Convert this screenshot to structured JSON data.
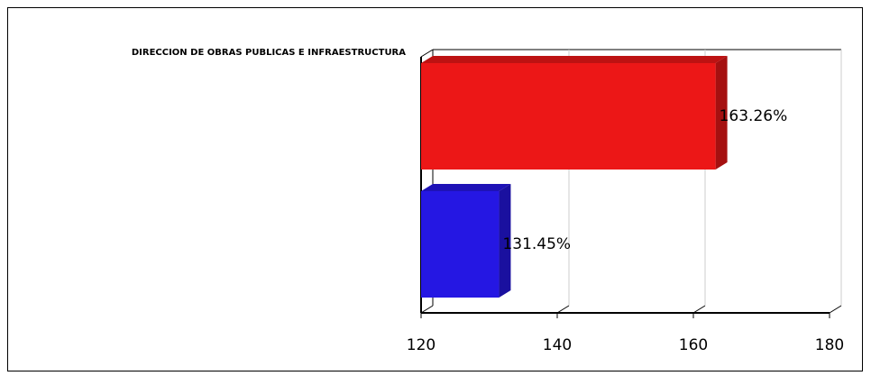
{
  "chart_data": {
    "type": "bar3d_horizontal",
    "categories": [
      "DIRECCION DE OBRAS PUBLICAS E INFRAESTRUCTURA"
    ],
    "series": [
      {
        "color": "#ec1717",
        "values": [
          163.26
        ],
        "value_labels": [
          "163.26%"
        ]
      },
      {
        "color": "#2517e3",
        "values": [
          131.45
        ],
        "value_labels": [
          "131.45%"
        ]
      }
    ],
    "xlim": [
      120,
      180
    ],
    "xticks": [
      120,
      140,
      160,
      180
    ],
    "grid": true
  }
}
